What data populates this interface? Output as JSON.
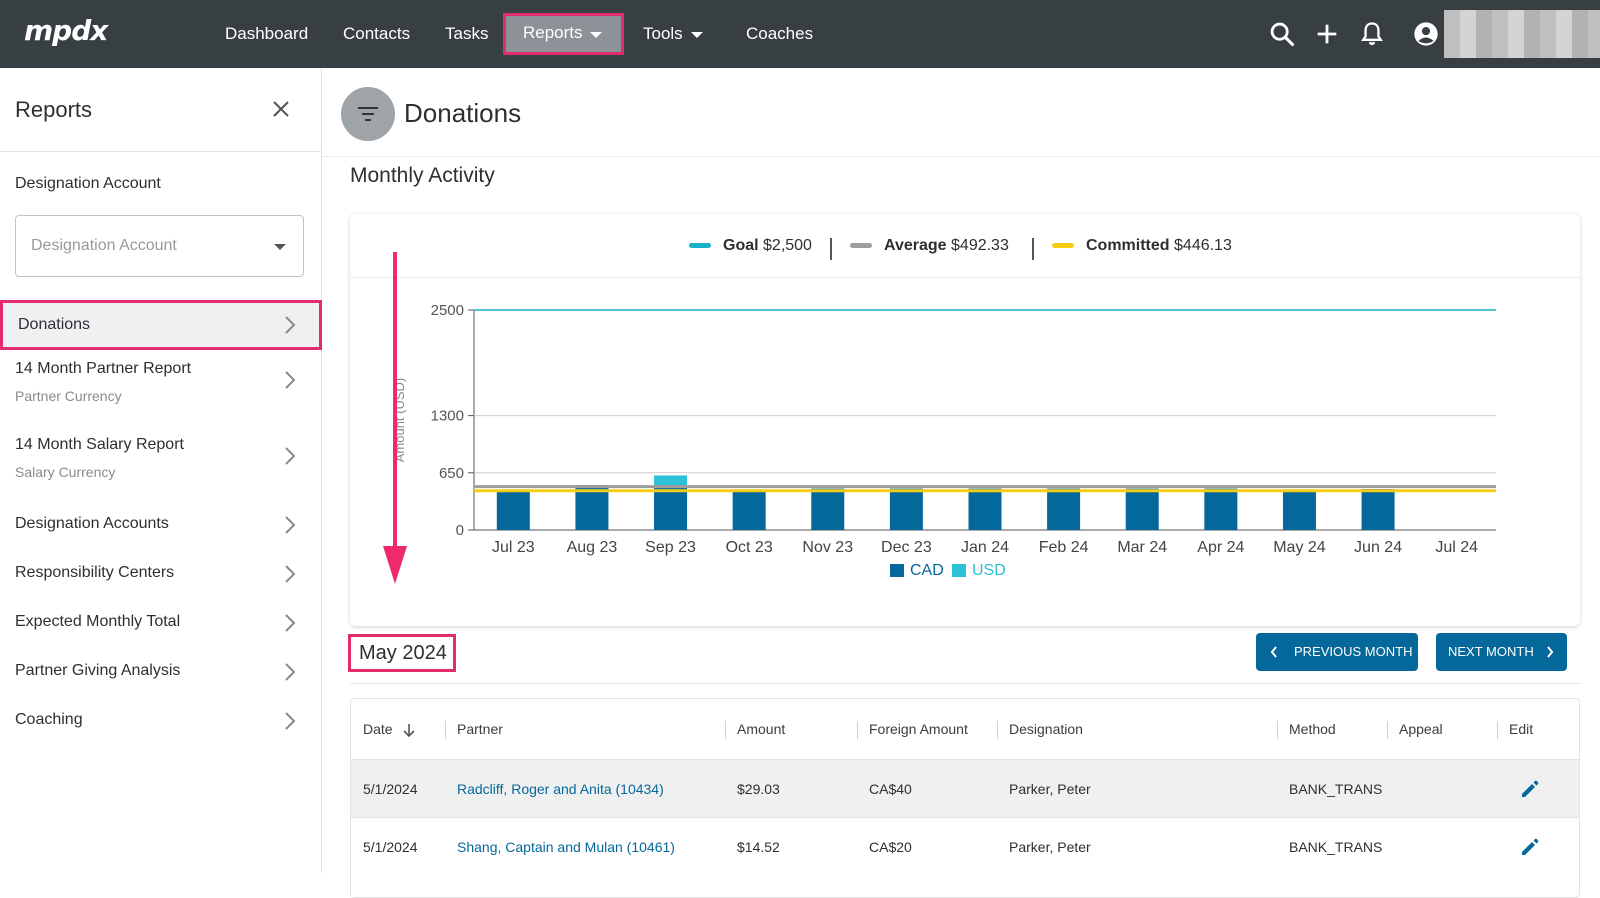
{
  "nav": {
    "logo": "mpdx",
    "items": [
      {
        "label": "Dashboard"
      },
      {
        "label": "Contacts"
      },
      {
        "label": "Tasks"
      },
      {
        "label": "Reports"
      },
      {
        "label": "Tools"
      },
      {
        "label": "Coaches"
      }
    ],
    "icons": [
      "search-icon",
      "plus-icon",
      "bell-icon",
      "account-icon"
    ]
  },
  "sidebar": {
    "title": "Reports",
    "designation_label": "Designation Account",
    "designation_placeholder": "Designation Account",
    "items": [
      {
        "label": "Donations",
        "sub": ""
      },
      {
        "label": "14 Month Partner Report",
        "sub": "Partner Currency"
      },
      {
        "label": "14 Month Salary Report",
        "sub": "Salary Currency"
      },
      {
        "label": "Designation Accounts",
        "sub": ""
      },
      {
        "label": "Responsibility Centers",
        "sub": ""
      },
      {
        "label": "Expected Monthly Total",
        "sub": ""
      },
      {
        "label": "Partner Giving Analysis",
        "sub": ""
      },
      {
        "label": "Coaching",
        "sub": ""
      }
    ]
  },
  "main": {
    "title": "Donations",
    "section_title": "Monthly Activity",
    "legend": {
      "goal_label": "Goal",
      "goal_value": "$2,500",
      "average_label": "Average",
      "average_value": "$492.33",
      "committed_label": "Committed",
      "committed_value": "$446.13"
    },
    "month_title": "May 2024",
    "prev_button": "PREVIOUS MONTH",
    "next_button": "NEXT MONTH",
    "table": {
      "headers": [
        "Date",
        "Partner",
        "Amount",
        "Foreign Amount",
        "Designation",
        "Method",
        "Appeal",
        "Edit"
      ],
      "rows": [
        {
          "date": "5/1/2024",
          "partner": "Radcliff, Roger and Anita (10434)",
          "amount": "$29.03",
          "foreign": "CA$40",
          "designation": "Parker, Peter",
          "method": "BANK_TRANS",
          "appeal": ""
        },
        {
          "date": "5/1/2024",
          "partner": "Shang, Captain and Mulan (10461)",
          "amount": "$14.52",
          "foreign": "CA$20",
          "designation": "Parker, Peter",
          "method": "BANK_TRANS",
          "appeal": ""
        }
      ]
    }
  },
  "colors": {
    "topbar": "#383f43",
    "highlight": "#e22c6f",
    "primary": "#05689b",
    "cad": "#05689b",
    "usd": "#2cc1d6",
    "goal": "#1ab0c7",
    "average": "#9e9e9e",
    "committed": "#f5cd17"
  },
  "chart_data": {
    "type": "bar",
    "categories": [
      "Jul 23",
      "Aug 23",
      "Sep 23",
      "Oct 23",
      "Nov 23",
      "Dec 23",
      "Jan 24",
      "Feb 24",
      "Mar 24",
      "Apr 24",
      "May 24",
      "Jun 24",
      "Jul 24"
    ],
    "series": [
      {
        "name": "CAD",
        "values": [
          455,
          510,
          510,
          455,
          470,
          470,
          470,
          470,
          470,
          470,
          460,
          465,
          0
        ]
      },
      {
        "name": "USD",
        "values": [
          0,
          0,
          110,
          0,
          0,
          0,
          0,
          0,
          0,
          0,
          0,
          0,
          0
        ]
      }
    ],
    "stacked": true,
    "lines": [
      {
        "name": "Goal",
        "value": 2500
      },
      {
        "name": "Average",
        "value": 492.33
      },
      {
        "name": "Committed",
        "value": 446.13
      }
    ],
    "yticks": [
      0,
      650,
      1300,
      2500
    ],
    "ylabel": "Amount (USD)",
    "ylim": [
      0,
      2500
    ],
    "grid": true,
    "legend_position": "bottom"
  }
}
